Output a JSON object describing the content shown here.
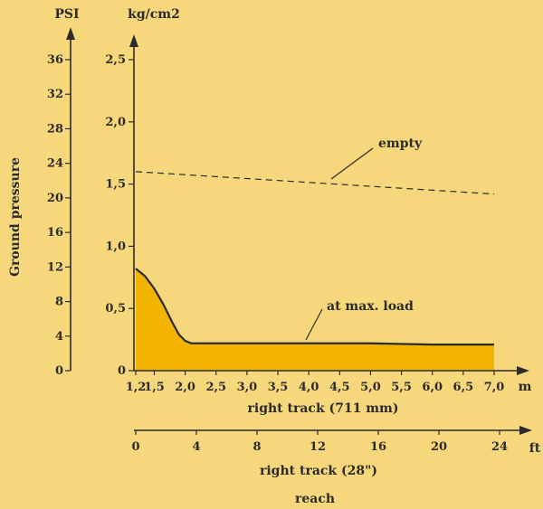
{
  "chart_data": {
    "type": "area",
    "title": "",
    "colors": {
      "background": "#f6d77c",
      "loaded_fill": "#f3b400",
      "line": "#2b2b2b"
    },
    "y_axes": {
      "left": {
        "label": "PSI",
        "title": "Ground pressure",
        "ticks": [
          "0",
          "4",
          "8",
          "12",
          "16",
          "20",
          "24",
          "28",
          "32",
          "36"
        ],
        "range": [
          0,
          36
        ]
      },
      "right": {
        "label": "kg/cm2",
        "ticks": [
          "0",
          "0,5",
          "1,0",
          "1,5",
          "2,0",
          "2,5"
        ],
        "range": [
          0,
          2.5
        ]
      }
    },
    "x_axes": {
      "top": {
        "unit": "m",
        "label": "right track (711 mm)",
        "ticks": [
          "1,2",
          "1,5",
          "2,0",
          "2,5",
          "3,0",
          "3,5",
          "4,0",
          "4,5",
          "5,0",
          "5,5",
          "6,0",
          "6,5",
          "7,0"
        ]
      },
      "bottom": {
        "unit": "ft",
        "label": "right track (28\")",
        "ticks": [
          "0",
          "4",
          "8",
          "12",
          "16",
          "20",
          "24"
        ],
        "range": [
          0,
          24
        ]
      },
      "caption": "reach"
    },
    "series": [
      {
        "name": "empty",
        "style": "dashed",
        "x": [
          1.2,
          7.0
        ],
        "y": [
          1.6,
          1.42
        ]
      },
      {
        "name": "at max. load",
        "style": "filled",
        "x": [
          1.2,
          1.35,
          1.5,
          1.65,
          1.8,
          1.9,
          2.0,
          2.1,
          2.2,
          3.0,
          4.0,
          5.0,
          6.0,
          7.0
        ],
        "y": [
          0.82,
          0.76,
          0.66,
          0.53,
          0.38,
          0.29,
          0.24,
          0.22,
          0.22,
          0.22,
          0.22,
          0.22,
          0.21,
          0.21
        ]
      }
    ]
  }
}
